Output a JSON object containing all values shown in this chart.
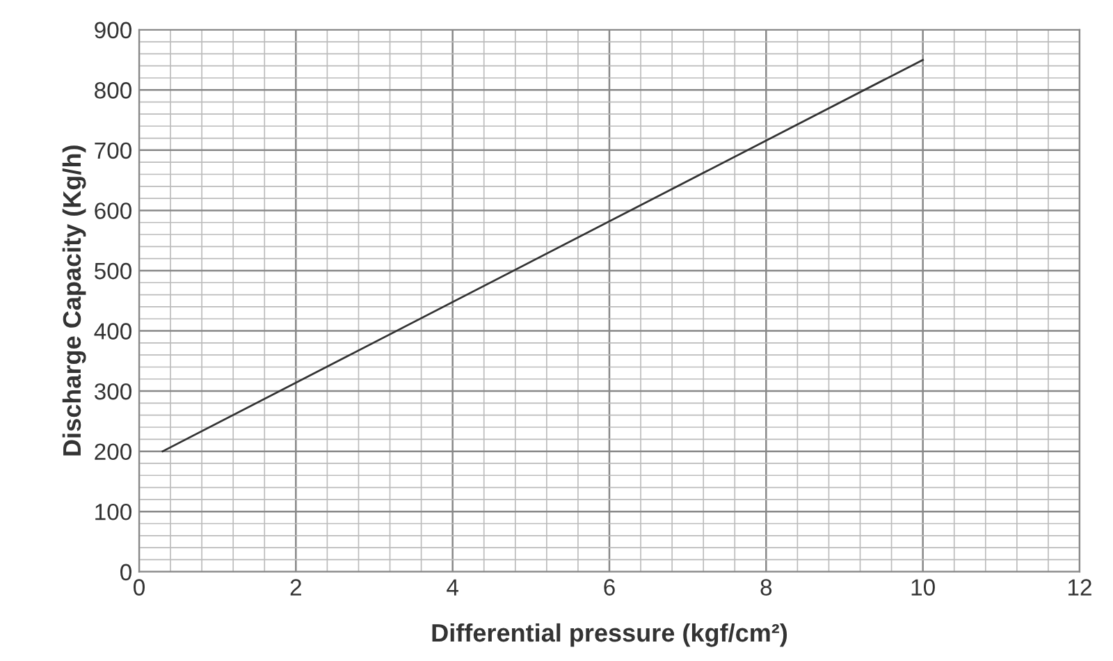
{
  "chart_data": {
    "type": "line",
    "xlabel": "Differential pressure (kgf/cm²)",
    "ylabel": "Discharge Capacity (Kg/h)",
    "x": [
      0.3,
      10
    ],
    "series": [
      {
        "color": "#333333",
        "values": [
          200,
          850
        ]
      }
    ],
    "xlim": [
      0,
      12
    ],
    "ylim": [
      0,
      900
    ],
    "xticks": [
      0,
      2,
      4,
      6,
      8,
      10,
      12
    ],
    "yticks": [
      0,
      100,
      200,
      300,
      400,
      500,
      600,
      700,
      800,
      900
    ],
    "grid": true,
    "marker": "none",
    "line_style": "solid"
  }
}
